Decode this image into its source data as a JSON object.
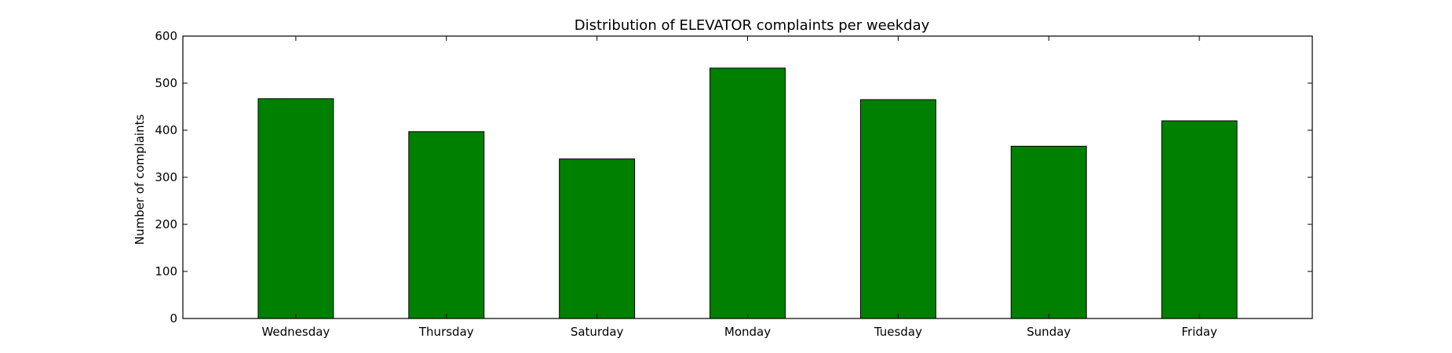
{
  "chart_data": {
    "type": "bar",
    "title": "Distribution of  ELEVATOR complaints per weekday",
    "xlabel": "",
    "ylabel": "Number of complaints",
    "categories": [
      "Wednesday",
      "Thursday",
      "Saturday",
      "Monday",
      "Tuesday",
      "Sunday",
      "Friday"
    ],
    "values": [
      467,
      397,
      339,
      532,
      465,
      366,
      420
    ],
    "ylim": [
      0,
      600
    ],
    "yticks": [
      0,
      100,
      200,
      300,
      400,
      500,
      600
    ],
    "bar_color": "#008000",
    "edge_color": "#000000",
    "grid": false,
    "legend": "none"
  }
}
